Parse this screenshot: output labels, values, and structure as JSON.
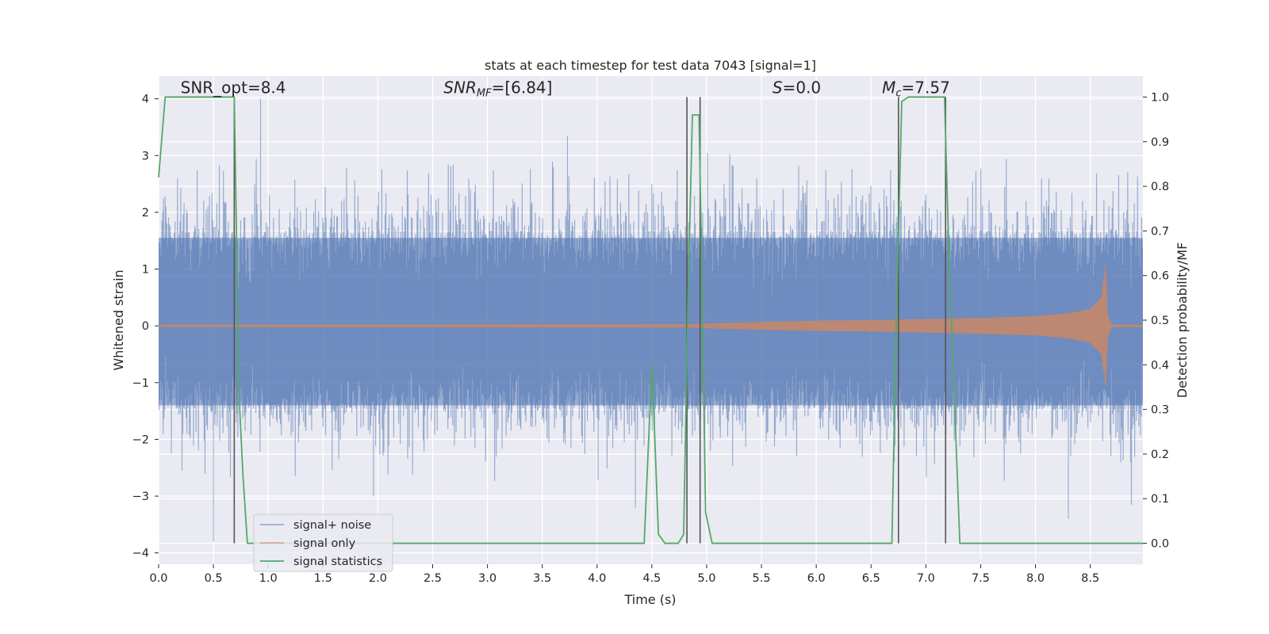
{
  "chart_data": {
    "type": "line",
    "title": "stats at each timestep for test data 7043 [signal=1]",
    "xlabel": "Time (s)",
    "ylabel": "Whitened strain",
    "y2label": "Detection probability/MF",
    "xlim": [
      0,
      8.98
    ],
    "ylim": [
      -4.2,
      4.4
    ],
    "y2lim": [
      -0.047,
      1.047
    ],
    "xticks": [
      0.0,
      0.5,
      1.0,
      1.5,
      2.0,
      2.5,
      3.0,
      3.5,
      4.0,
      4.5,
      5.0,
      5.5,
      6.0,
      6.5,
      7.0,
      7.5,
      8.0,
      8.5
    ],
    "xtick_labels": [
      "0.0",
      "0.5",
      "1.0",
      "1.5",
      "2.0",
      "2.5",
      "3.0",
      "3.5",
      "4.0",
      "4.5",
      "5.0",
      "5.5",
      "6.0",
      "6.5",
      "7.0",
      "7.5",
      "8.0",
      "8.5"
    ],
    "yticks": [
      -4,
      -3,
      -2,
      -1,
      0,
      1,
      2,
      3,
      4
    ],
    "ytick_labels": [
      "−4",
      "−3",
      "−2",
      "−1",
      "0",
      "1",
      "2",
      "3",
      "4"
    ],
    "y2ticks": [
      0.0,
      0.1,
      0.2,
      0.3,
      0.4,
      0.5,
      0.6,
      0.7,
      0.8,
      0.9,
      1.0
    ],
    "y2tick_labels": [
      "0.0",
      "0.1",
      "0.2",
      "0.3",
      "0.4",
      "0.5",
      "0.6",
      "0.7",
      "0.8",
      "0.9",
      "1.0"
    ],
    "grid": true,
    "legend_position": "lower-left",
    "annotations": [
      {
        "text": "SNR_opt=8.4",
        "x": 0.2,
        "y": 4.1
      },
      {
        "text": "SNR",
        "sub": "MF",
        "rest": "=[6.84]",
        "x": 2.6,
        "y": 4.1
      },
      {
        "text": "S",
        "rest": "=0.0",
        "x": 5.6,
        "y": 4.1
      },
      {
        "text": "M",
        "sub": "c",
        "rest": "=7.57",
        "x": 6.6,
        "y": 4.1
      }
    ],
    "vertical_lines_x": [
      0.69,
      4.82,
      4.94,
      6.75,
      7.18
    ],
    "series": [
      {
        "name": "signal+ noise",
        "axis": "left",
        "style": "noise",
        "color": "#4c72b0",
        "amplitude_band": [
          -1.5,
          1.7
        ],
        "peak_range": [
          -3.8,
          4.0
        ],
        "x_range": [
          0,
          8.98
        ],
        "spikes": [
          [
            0.93,
            4.0
          ],
          [
            0.5,
            -3.8
          ],
          [
            1.96,
            -3.0
          ],
          [
            4.35,
            -3.2
          ],
          [
            8.3,
            -3.4
          ],
          [
            3.73,
            3.35
          ]
        ]
      },
      {
        "name": "signal only",
        "axis": "left",
        "style": "chirp",
        "color": "#dd8452",
        "envelope_x": [
          0,
          4.8,
          5.5,
          6.0,
          6.5,
          7.0,
          7.5,
          8.0,
          8.3,
          8.5,
          8.6,
          8.64,
          8.66,
          8.7
        ],
        "envelope_y": [
          0.02,
          0.03,
          0.07,
          0.09,
          0.1,
          0.12,
          0.14,
          0.17,
          0.22,
          0.3,
          0.5,
          1.1,
          0.2,
          0.01
        ]
      },
      {
        "name": "signal statistics",
        "axis": "right",
        "style": "line",
        "color": "#55a868",
        "x": [
          0.0,
          0.06,
          0.12,
          0.69,
          0.72,
          0.74,
          0.77,
          0.81,
          4.43,
          4.5,
          4.52,
          4.56,
          4.62,
          4.74,
          4.79,
          4.83,
          4.87,
          4.93,
          4.96,
          4.99,
          5.05,
          6.69,
          6.73,
          6.78,
          6.84,
          7.17,
          7.21,
          7.31,
          8.98
        ],
        "y": [
          0.82,
          1.0,
          1.0,
          1.0,
          0.55,
          0.3,
          0.15,
          0.0,
          0.0,
          0.4,
          0.28,
          0.02,
          0.0,
          0.0,
          0.02,
          0.55,
          0.96,
          0.96,
          0.55,
          0.07,
          0.0,
          0.0,
          0.5,
          0.99,
          1.0,
          1.0,
          0.65,
          0.0,
          0.0
        ]
      }
    ]
  }
}
